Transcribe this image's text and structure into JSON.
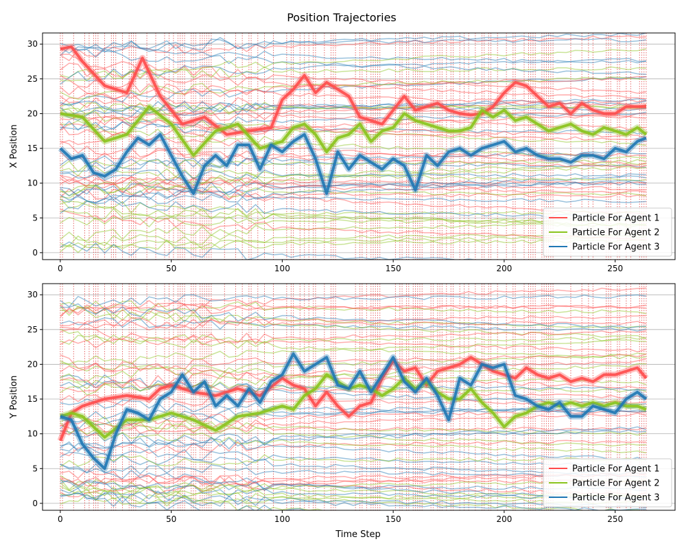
{
  "figure": {
    "title": "Position Trajectories"
  },
  "legend_line_width": 2,
  "colors": {
    "agent1": "#ff4b4b",
    "agent2": "#8ac41c",
    "agent3": "#1f77b4",
    "grid": "#b0b0b0",
    "resample_marker": "#e0393a"
  },
  "chart_data": [
    {
      "type": "line",
      "title": "",
      "xlabel": "",
      "ylabel": "X Position",
      "xlim": [
        -8,
        277
      ],
      "ylim": [
        -1,
        31.6
      ],
      "xticks": [
        0,
        50,
        100,
        150,
        200,
        250
      ],
      "yticks": [
        0,
        5,
        10,
        15,
        20,
        25,
        30
      ],
      "grid": "horizontal",
      "legend": {
        "placement": "lower-right",
        "entries": [
          "Particle For Agent 1",
          "Particle For Agent 2",
          "Particle For Agent 3"
        ]
      },
      "vertical_markers": "dotted red lines at resampling time steps",
      "series": [
        {
          "legend_label": "Particle For Agent 1",
          "color": "agent1",
          "x": [
            0,
            5,
            10,
            20,
            30,
            37,
            45,
            55,
            65,
            75,
            85,
            95,
            100,
            105,
            110,
            115,
            120,
            125,
            130,
            135,
            140,
            145,
            150,
            155,
            160,
            165,
            170,
            175,
            180,
            185,
            190,
            195,
            200,
            205,
            210,
            215,
            220,
            225,
            230,
            235,
            240,
            245,
            250,
            255,
            260,
            264
          ],
          "y": [
            29.3,
            29.6,
            27.5,
            24.0,
            23.0,
            28.0,
            22.5,
            18.5,
            19.5,
            17.0,
            17.5,
            18.0,
            22.0,
            23.5,
            25.5,
            23.0,
            24.5,
            23.5,
            22.5,
            19.5,
            19.0,
            18.5,
            20.5,
            22.5,
            20.5,
            21.0,
            21.5,
            20.5,
            20.0,
            19.8,
            20.0,
            21.0,
            23.0,
            24.5,
            24.0,
            22.5,
            21.0,
            21.5,
            20.0,
            21.5,
            20.5,
            20.0,
            20.0,
            21.0,
            21.0,
            21.0
          ]
        },
        {
          "legend_label": "Particle For Agent 2",
          "color": "agent2",
          "x": [
            0,
            10,
            20,
            30,
            40,
            50,
            60,
            70,
            80,
            90,
            100,
            105,
            110,
            115,
            120,
            125,
            130,
            135,
            140,
            145,
            150,
            155,
            160,
            165,
            170,
            175,
            180,
            185,
            190,
            195,
            200,
            205,
            210,
            215,
            220,
            225,
            230,
            235,
            240,
            245,
            250,
            255,
            260,
            264
          ],
          "y": [
            20.0,
            19.5,
            16.0,
            17.0,
            21.0,
            18.5,
            14.0,
            17.5,
            18.5,
            15.0,
            16.0,
            18.0,
            18.5,
            17.0,
            14.5,
            16.5,
            17.0,
            18.5,
            16.0,
            17.5,
            18.0,
            20.0,
            19.0,
            18.5,
            18.0,
            17.5,
            17.5,
            18.0,
            20.5,
            19.5,
            20.5,
            19.0,
            19.5,
            18.5,
            17.5,
            18.0,
            18.5,
            17.5,
            17.0,
            18.0,
            17.5,
            17.0,
            18.0,
            17.0
          ]
        },
        {
          "legend_label": "Particle For Agent 3",
          "color": "agent3",
          "x": [
            0,
            5,
            10,
            15,
            20,
            25,
            30,
            35,
            40,
            45,
            50,
            55,
            60,
            65,
            70,
            75,
            80,
            85,
            90,
            95,
            100,
            105,
            110,
            115,
            120,
            125,
            130,
            135,
            140,
            145,
            150,
            155,
            160,
            165,
            170,
            175,
            180,
            185,
            190,
            195,
            200,
            205,
            210,
            215,
            220,
            225,
            230,
            235,
            240,
            245,
            250,
            255,
            260,
            264
          ],
          "y": [
            15.0,
            13.5,
            14.0,
            11.5,
            11.0,
            12.0,
            14.5,
            16.5,
            15.5,
            17.0,
            14.0,
            11.0,
            8.5,
            12.5,
            14.0,
            12.5,
            15.5,
            15.5,
            12.0,
            15.5,
            14.5,
            16.0,
            17.0,
            13.5,
            8.5,
            14.5,
            12.0,
            14.0,
            13.0,
            12.0,
            13.5,
            12.5,
            9.0,
            14.0,
            12.5,
            14.5,
            15.0,
            14.0,
            15.0,
            15.5,
            16.0,
            14.5,
            15.0,
            14.0,
            13.5,
            13.5,
            13.0,
            14.0,
            14.0,
            13.5,
            15.0,
            14.5,
            16.0,
            16.5
          ]
        }
      ]
    },
    {
      "type": "line",
      "title": "",
      "xlabel": "Time Step",
      "ylabel": "Y Position",
      "xlim": [
        -8,
        277
      ],
      "ylim": [
        -1,
        31.6
      ],
      "xticks": [
        0,
        50,
        100,
        150,
        200,
        250
      ],
      "yticks": [
        0,
        5,
        10,
        15,
        20,
        25,
        30
      ],
      "grid": "horizontal",
      "legend": {
        "placement": "lower-right",
        "entries": [
          "Particle For Agent 1",
          "Particle For Agent 2",
          "Particle For Agent 3"
        ]
      },
      "vertical_markers": "dotted red lines at resampling time steps",
      "series": [
        {
          "legend_label": "Particle For Agent 1",
          "color": "agent1",
          "x": [
            0,
            5,
            10,
            20,
            30,
            40,
            45,
            50,
            60,
            70,
            80,
            90,
            100,
            105,
            110,
            115,
            120,
            125,
            130,
            135,
            140,
            145,
            150,
            155,
            160,
            165,
            170,
            175,
            180,
            185,
            190,
            195,
            200,
            205,
            210,
            215,
            220,
            225,
            230,
            235,
            240,
            245,
            250,
            255,
            260,
            264
          ],
          "y": [
            9.0,
            13.0,
            14.0,
            15.0,
            15.5,
            15.0,
            16.5,
            17.0,
            16.0,
            15.5,
            16.5,
            15.5,
            18.0,
            17.0,
            16.5,
            14.0,
            16.0,
            14.0,
            12.5,
            14.0,
            14.5,
            18.0,
            20.5,
            19.0,
            19.5,
            17.0,
            19.0,
            19.5,
            20.0,
            21.0,
            20.0,
            19.0,
            18.5,
            18.0,
            19.5,
            18.5,
            18.0,
            18.5,
            17.5,
            18.0,
            17.5,
            18.5,
            18.5,
            19.0,
            19.5,
            18.0
          ]
        },
        {
          "legend_label": "Particle For Agent 2",
          "color": "agent2",
          "x": [
            0,
            5,
            10,
            20,
            30,
            40,
            50,
            60,
            70,
            80,
            90,
            100,
            105,
            110,
            115,
            120,
            125,
            130,
            135,
            140,
            145,
            150,
            155,
            160,
            165,
            170,
            175,
            180,
            185,
            190,
            195,
            200,
            205,
            210,
            215,
            220,
            225,
            230,
            235,
            240,
            245,
            250,
            255,
            260,
            264
          ],
          "y": [
            12.5,
            13.0,
            12.5,
            9.5,
            12.0,
            12.0,
            13.0,
            12.0,
            10.5,
            12.5,
            13.0,
            14.0,
            13.5,
            15.5,
            16.5,
            18.5,
            17.5,
            16.5,
            17.0,
            16.5,
            15.5,
            16.5,
            18.0,
            16.5,
            17.5,
            16.0,
            15.0,
            15.0,
            16.5,
            14.5,
            13.0,
            11.0,
            12.5,
            13.0,
            14.0,
            14.5,
            14.0,
            14.5,
            14.0,
            14.5,
            14.0,
            14.5,
            14.0,
            14.0,
            13.5
          ]
        },
        {
          "legend_label": "Particle For Agent 3",
          "color": "agent3",
          "x": [
            0,
            5,
            10,
            15,
            20,
            25,
            30,
            35,
            40,
            45,
            50,
            55,
            60,
            65,
            70,
            75,
            80,
            85,
            90,
            95,
            100,
            105,
            110,
            115,
            120,
            125,
            130,
            135,
            140,
            145,
            150,
            155,
            160,
            165,
            170,
            175,
            180,
            185,
            190,
            195,
            200,
            205,
            210,
            215,
            220,
            225,
            230,
            235,
            240,
            245,
            250,
            255,
            260,
            264
          ],
          "y": [
            12.5,
            12.0,
            8.5,
            6.5,
            5.0,
            10.0,
            13.5,
            13.0,
            12.0,
            15.0,
            16.0,
            18.5,
            16.0,
            17.5,
            14.0,
            15.5,
            14.0,
            16.5,
            14.5,
            17.5,
            18.5,
            21.5,
            19.0,
            20.0,
            21.0,
            17.0,
            16.5,
            19.0,
            16.0,
            18.5,
            21.0,
            17.5,
            16.0,
            18.0,
            15.5,
            12.0,
            18.0,
            17.0,
            20.0,
            19.5,
            20.0,
            15.5,
            15.0,
            14.0,
            13.5,
            14.5,
            12.5,
            12.5,
            14.0,
            13.5,
            13.0,
            15.0,
            16.0,
            15.0
          ]
        }
      ]
    }
  ]
}
